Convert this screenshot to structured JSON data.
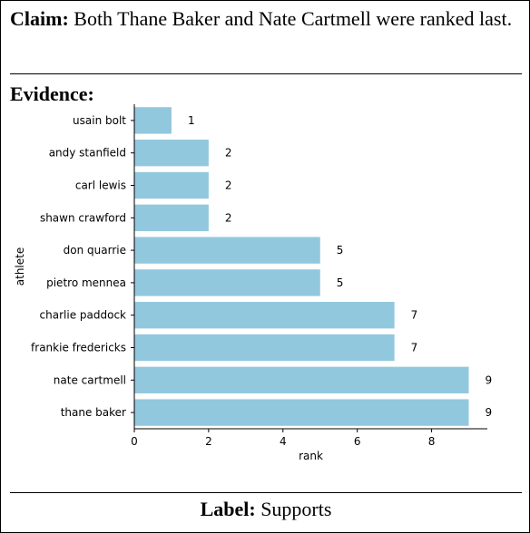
{
  "claim": {
    "prefix": "Claim:",
    "text": "Both Thane Baker and Nate Cartmell were ranked last."
  },
  "evidence": {
    "title": "Evidence:"
  },
  "label": {
    "prefix": "Label:",
    "value": "Supports"
  },
  "chart_data": {
    "type": "bar",
    "orientation": "horizontal",
    "xlabel": "rank",
    "ylabel": "athlete",
    "xlim": [
      0,
      9.5
    ],
    "xticks": [
      0,
      2,
      4,
      6,
      8
    ],
    "bar_color": "#92c8de",
    "categories": [
      "usain bolt",
      "andy stanfield",
      "carl lewis",
      "shawn crawford",
      "don quarrie",
      "pietro mennea",
      "charlie paddock",
      "frankie fredericks",
      "nate cartmell",
      "thane baker"
    ],
    "values": [
      1,
      2,
      2,
      2,
      5,
      5,
      7,
      7,
      9,
      9
    ]
  }
}
